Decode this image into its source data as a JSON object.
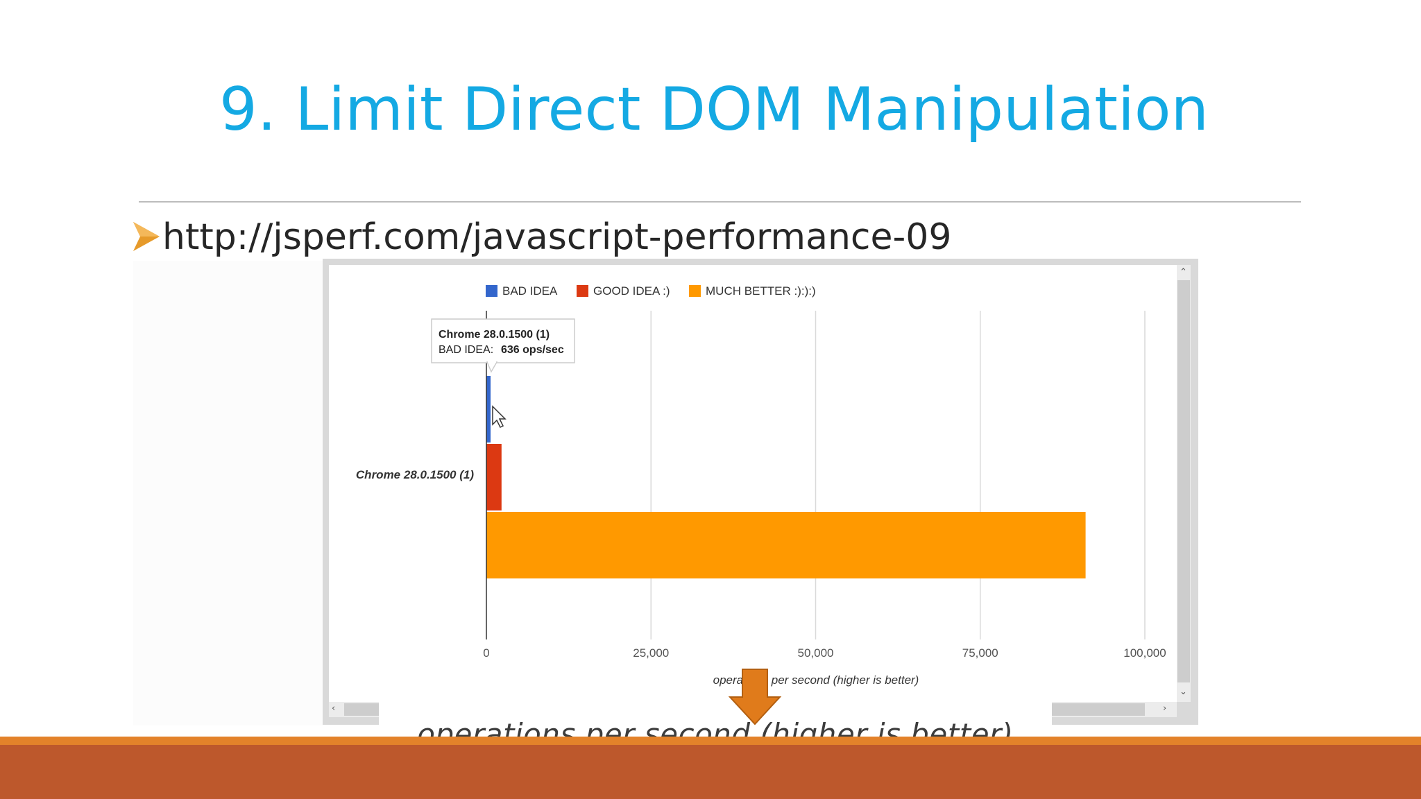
{
  "slide": {
    "title": "9. Limit Direct DOM Manipulation",
    "bullet": "http://jsperf.com/javascript-performance-09"
  },
  "chart_data": {
    "type": "bar",
    "orientation": "horizontal",
    "categories": [
      "Chrome 28.0.1500 (1)"
    ],
    "series": [
      {
        "name": "BAD IDEA",
        "values": [
          636
        ],
        "color": "#3366cc"
      },
      {
        "name": "GOOD IDEA :)",
        "values": [
          2300
        ],
        "color": "#dc3912"
      },
      {
        "name": "MUCH BETTER :):):)",
        "values": [
          91000
        ],
        "color": "#ff9900"
      }
    ],
    "xlim": [
      0,
      100000
    ],
    "ticks": [
      "0",
      "25,000",
      "50,000",
      "75,000",
      "100,000"
    ],
    "tick_values": [
      0,
      25000,
      50000,
      75000,
      100000
    ],
    "xlabel": "operations per second (higher is better)",
    "legend_position": "top",
    "grid": true,
    "tooltip": {
      "title": "Chrome 28.0.1500 (1)",
      "label": "BAD IDEA:",
      "value": "636 ops/sec"
    }
  },
  "zoom_callout": {
    "text": "operations per second (higher is better)",
    "arrow_color": "#e07b1b"
  },
  "colors": {
    "title": "#14a9e3",
    "stripe": "#e3822a",
    "band": "#bd582c"
  },
  "icons": [
    "arrow-bullet-icon",
    "mouse-cursor-icon",
    "down-arrow-icon",
    "scroll-up-icon",
    "scroll-down-icon",
    "scroll-left-icon",
    "scroll-right-icon"
  ]
}
